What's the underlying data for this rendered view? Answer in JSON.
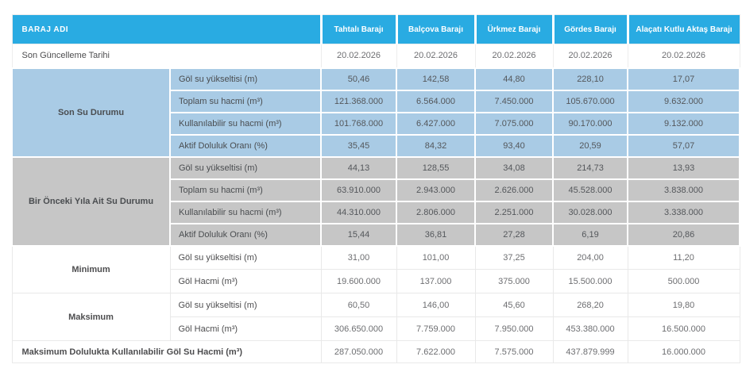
{
  "colors": {
    "header_bg": "#29abe2",
    "section_blue_bg": "#a9cbe5",
    "section_gray_bg": "#c6c6c6",
    "header_text": "#ffffff",
    "label_text": "#4d4d4f",
    "value_text": "#6d6e71"
  },
  "header": {
    "row_label": "BARAJ ADI",
    "columns": [
      "Tahtalı Barajı",
      "Balçova Barajı",
      "Ürkmez Barajı",
      "Gördes Barajı",
      "Alaçatı Kutlu Aktaş Barajı"
    ]
  },
  "update_row": {
    "label": "Son Güncelleme Tarihi",
    "values": [
      "20.02.2026",
      "20.02.2026",
      "20.02.2026",
      "20.02.2026",
      "20.02.2026"
    ]
  },
  "sections": [
    {
      "title": "Son Su Durumu",
      "bg": "#a9cbe5",
      "colored": true,
      "rows": [
        {
          "label": "Göl su yükseltisi (m)",
          "values": [
            "50,46",
            "142,58",
            "44,80",
            "228,10",
            "17,07"
          ]
        },
        {
          "label": "Toplam su hacmi (m³)",
          "values": [
            "121.368.000",
            "6.564.000",
            "7.450.000",
            "105.670.000",
            "9.632.000"
          ]
        },
        {
          "label": "Kullanılabilir su hacmi (m³)",
          "values": [
            "101.768.000",
            "6.427.000",
            "7.075.000",
            "90.170.000",
            "9.132.000"
          ]
        },
        {
          "label": "Aktif Doluluk Oranı (%)",
          "values": [
            "35,45",
            "84,32",
            "93,40",
            "20,59",
            "57,07"
          ]
        }
      ]
    },
    {
      "title": "Bir Önceki Yıla Ait Su Durumu",
      "bg": "#c6c6c6",
      "colored": true,
      "rows": [
        {
          "label": "Göl su yükseltisi (m)",
          "values": [
            "44,13",
            "128,55",
            "34,08",
            "214,73",
            "13,93"
          ]
        },
        {
          "label": "Toplam su hacmi (m³)",
          "values": [
            "63.910.000",
            "2.943.000",
            "2.626.000",
            "45.528.000",
            "3.838.000"
          ]
        },
        {
          "label": "Kullanılabilir su hacmi (m³)",
          "values": [
            "44.310.000",
            "2.806.000",
            "2.251.000",
            "30.028.000",
            "3.338.000"
          ]
        },
        {
          "label": "Aktif Doluluk Oranı (%)",
          "values": [
            "15,44",
            "36,81",
            "27,28",
            "6,19",
            "20,86"
          ]
        }
      ]
    },
    {
      "title": "Minimum",
      "bg": "",
      "colored": false,
      "rows": [
        {
          "label": "Göl su yükseltisi (m)",
          "values": [
            "31,00",
            "101,00",
            "37,25",
            "204,00",
            "11,20"
          ]
        },
        {
          "label": "Göl Hacmi (m³)",
          "values": [
            "19.600.000",
            "137.000",
            "375.000",
            "15.500.000",
            "500.000"
          ]
        }
      ]
    },
    {
      "title": "Maksimum",
      "bg": "",
      "colored": false,
      "rows": [
        {
          "label": "Göl su yükseltisi (m)",
          "values": [
            "60,50",
            "146,00",
            "45,60",
            "268,20",
            "19,80"
          ]
        },
        {
          "label": "Göl Hacmi (m³)",
          "values": [
            "306.650.000",
            "7.759.000",
            "7.950.000",
            "453.380.000",
            "16.500.000"
          ]
        }
      ]
    }
  ],
  "footer_row": {
    "label": "Maksimum Dolulukta Kullanılabilir Göl Su Hacmi (m³)",
    "values": [
      "287.050.000",
      "7.622.000",
      "7.575.000",
      "437.879.999",
      "16.000.000"
    ]
  }
}
